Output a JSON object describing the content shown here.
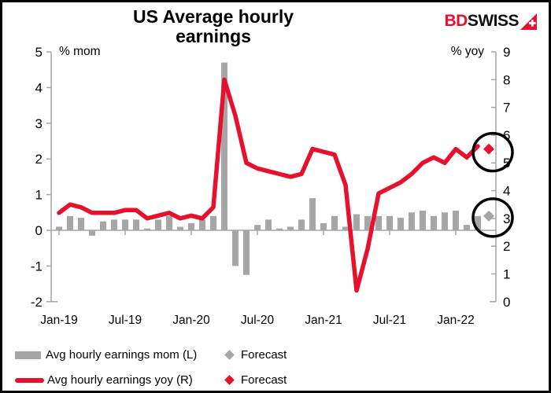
{
  "title": "US Average hourly earnings",
  "logo": {
    "bd": "BD",
    "swiss": "SWISS",
    "arrow_color": "#e8112d"
  },
  "colors": {
    "bar_gray": "#a6a6a6",
    "line_red": "#e8112d",
    "axis_gray": "#a6a6a6",
    "circle_black": "#000000"
  },
  "chart_data": {
    "type": "bar+line",
    "title": "US Average hourly earnings",
    "x": [
      "Jan-19",
      "Feb-19",
      "Mar-19",
      "Apr-19",
      "May-19",
      "Jun-19",
      "Jul-19",
      "Aug-19",
      "Sep-19",
      "Oct-19",
      "Nov-19",
      "Dec-19",
      "Jan-20",
      "Feb-20",
      "Mar-20",
      "Apr-20",
      "May-20",
      "Jun-20",
      "Jul-20",
      "Aug-20",
      "Sep-20",
      "Oct-20",
      "Nov-20",
      "Dec-20",
      "Jan-21",
      "Feb-21",
      "Mar-21",
      "Apr-21",
      "May-21",
      "Jun-21",
      "Jul-21",
      "Aug-21",
      "Sep-21",
      "Oct-21",
      "Nov-21",
      "Dec-21",
      "Jan-22",
      "Feb-22",
      "Mar-22"
    ],
    "series": [
      {
        "name": "Avg hourly earnings mom (L)",
        "type": "bar",
        "axis": "left",
        "color": "#a6a6a6",
        "values": [
          0.1,
          0.4,
          0.35,
          -0.15,
          0.25,
          0.3,
          0.3,
          0.3,
          0.05,
          0.3,
          0.4,
          0.1,
          0.2,
          0.3,
          0.4,
          4.7,
          -1.0,
          -1.25,
          0.15,
          0.3,
          0.05,
          0.1,
          0.3,
          0.9,
          0.2,
          0.4,
          0.1,
          0.45,
          0.4,
          0.4,
          0.4,
          0.35,
          0.5,
          0.55,
          0.4,
          0.5,
          0.55,
          0.15,
          0.4
        ]
      },
      {
        "name": "Avg hourly earnings yoy (R)",
        "type": "line",
        "axis": "right",
        "color": "#e8112d",
        "values": [
          3.2,
          3.5,
          3.4,
          3.2,
          3.2,
          3.2,
          3.3,
          3.3,
          3.0,
          3.1,
          3.2,
          3.0,
          3.1,
          3.0,
          3.4,
          8.0,
          6.7,
          5.0,
          4.8,
          4.7,
          4.6,
          4.5,
          4.6,
          5.5,
          5.4,
          5.3,
          4.2,
          0.4,
          1.9,
          3.9,
          4.1,
          4.3,
          4.6,
          5.0,
          5.2,
          5.0,
          5.5,
          5.2,
          5.6
        ]
      }
    ],
    "forecast": {
      "x": "Apr-22",
      "mom_left": 0.4,
      "yoy_right": 5.5,
      "mom_color": "#a6a6a6",
      "yoy_color": "#e8112d",
      "circled": true
    },
    "left_axis": {
      "label": "% mom",
      "min": -2,
      "max": 5,
      "tick_step": 1
    },
    "right_axis": {
      "label": "% yoy",
      "min": 0,
      "max": 9,
      "tick_step": 1
    },
    "x_tick_labels": [
      "Jan-19",
      "Jul-19",
      "Jan-20",
      "Jul-20",
      "Jan-21",
      "Jul-21",
      "Jan-22"
    ],
    "grid": false,
    "legend_position": "bottom"
  },
  "legend": {
    "items": [
      {
        "label": "Avg hourly earnings mom (L)",
        "marker": "bar",
        "color": "#a6a6a6"
      },
      {
        "label": "Forecast",
        "marker": "diamond",
        "color": "#a6a6a6"
      },
      {
        "label": "Avg hourly earnings yoy (R)",
        "marker": "line",
        "color": "#e8112d"
      },
      {
        "label": "Forecast",
        "marker": "diamond",
        "color": "#e8112d"
      }
    ]
  }
}
